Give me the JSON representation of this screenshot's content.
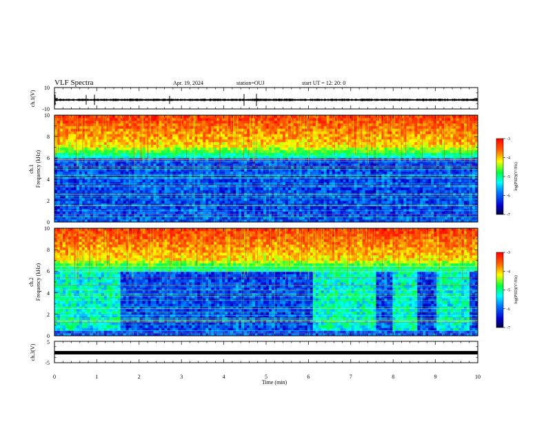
{
  "header": {
    "title": "VLF Spectra",
    "date": "Apr. 19, 2024",
    "station": "station=OUJ",
    "start": "start  UT =   12: 20: 0"
  },
  "chart_data": [
    {
      "type": "line",
      "panel": "ch.1 waveform",
      "ylabel": "ch.1(V)",
      "ylim": [
        -10,
        10
      ],
      "yticks": [
        "10",
        "-10"
      ],
      "xlim": [
        0,
        10
      ],
      "baseline": -1.5,
      "color": "#000000"
    },
    {
      "type": "heatmap",
      "panel": "ch.1 spectrogram",
      "ylabel": "ch.1\nFrequency  (kHz)",
      "ylim": [
        0,
        10
      ],
      "yticks": [
        "10",
        "8",
        "6",
        "4",
        "2",
        "0"
      ],
      "xlim": [
        0,
        10
      ],
      "colorbar": {
        "label": "log(PSD)(V²/Hz)",
        "ticks": [
          "-3",
          "-4",
          "-5",
          "-6",
          "-7"
        ],
        "range": [
          -7,
          -3
        ]
      },
      "quiet_segments": [],
      "upper_band_kHz": [
        7,
        10
      ],
      "dark_band_kHz": [
        0.5,
        6
      ]
    },
    {
      "type": "heatmap",
      "panel": "ch.2 spectrogram",
      "ylabel": "ch.2\nFrequency  (kHz)",
      "ylim": [
        0,
        10
      ],
      "yticks": [
        "10",
        "8",
        "6",
        "4",
        "2",
        "0"
      ],
      "xlim": [
        0,
        10
      ],
      "colorbar": {
        "label": "log(PSD)(V²/Hz)",
        "ticks": [
          "-3",
          "-4",
          "-5",
          "-6",
          "-7"
        ],
        "range": [
          -7,
          -3
        ]
      },
      "brighter_segments_min": [
        [
          0,
          1.55
        ],
        [
          6.1,
          7.6
        ],
        [
          8.0,
          8.55
        ],
        [
          9.0,
          9.8
        ]
      ]
    },
    {
      "type": "line",
      "panel": "ch.3 waveform",
      "ylabel": "ch.3(V)",
      "ylim": [
        -5,
        5
      ],
      "yticks": [
        "5",
        "-5"
      ],
      "xlim": [
        0,
        10
      ],
      "value": -0.8,
      "xlabel": "Time  (min)",
      "xticks": [
        "0",
        "1",
        "2",
        "3",
        "4",
        "5",
        "6",
        "7",
        "8",
        "9",
        "10"
      ]
    }
  ]
}
